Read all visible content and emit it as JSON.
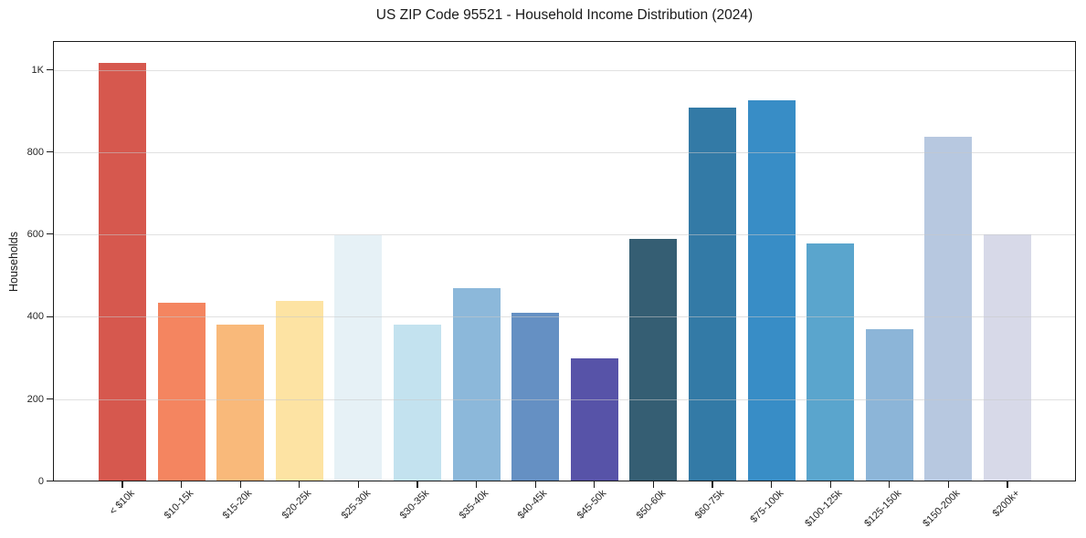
{
  "chart_data": {
    "type": "bar",
    "title": "US ZIP Code 95521 - Household Income Distribution (2024)",
    "xlabel": "",
    "ylabel": "Households",
    "categories": [
      "< $10k",
      "$10-15k",
      "$15-20k",
      "$20-25k",
      "$25-30k",
      "$30-35k",
      "$35-40k",
      "$40-45k",
      "$45-50k",
      "$50-60k",
      "$60-75k",
      "$75-100k",
      "$100-125k",
      "$125-150k",
      "$150-200k",
      "$200k+"
    ],
    "values": [
      1017,
      435,
      381,
      439,
      598,
      380,
      470,
      409,
      299,
      589,
      907,
      925,
      577,
      369,
      838,
      600
    ],
    "bar_colors": [
      "#d6584e",
      "#f48560",
      "#f9b97a",
      "#fde3a3",
      "#e6f1f6",
      "#c3e2ef",
      "#8cb8da",
      "#6590c3",
      "#5753a8",
      "#355e73",
      "#337aa6",
      "#388dc6",
      "#5aa5cd",
      "#8cb5d8",
      "#b7c8e0",
      "#d7d9e8"
    ],
    "ylim": [
      0,
      1070
    ],
    "yticks": [
      {
        "value": 0,
        "label": "0"
      },
      {
        "value": 200,
        "label": "200"
      },
      {
        "value": 400,
        "label": "400"
      },
      {
        "value": 600,
        "label": "600"
      },
      {
        "value": 800,
        "label": "800"
      },
      {
        "value": 1000,
        "label": "1K"
      }
    ],
    "grid": true,
    "grid_axis": "y",
    "legend": null,
    "colors": {
      "background": "#ffffff",
      "spine": "#1a1a1a",
      "gridline": "#e3e3e3",
      "text": "#262626"
    }
  }
}
